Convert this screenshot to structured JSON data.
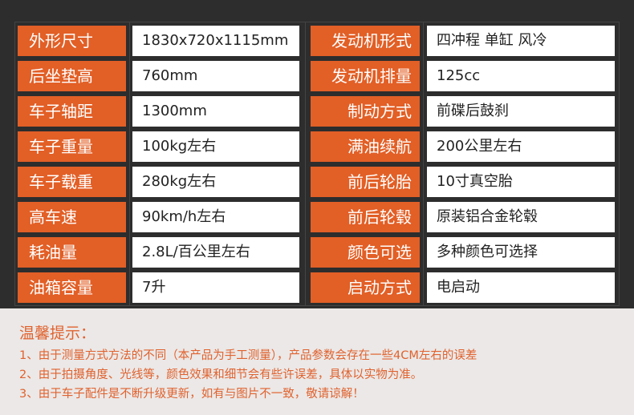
{
  "colors": {
    "label_bg": "#e25f26",
    "page_bg": "#2d2d2d",
    "note_text": "#e0622e"
  },
  "specs": [
    {
      "left_label": "外形尺寸",
      "left_value": "1830x720x1115mm",
      "right_label": "发动机形式",
      "right_value": "四冲程 单缸 风冷"
    },
    {
      "left_label": "后坐垫高",
      "left_value": "760mm",
      "right_label": "发动机排量",
      "right_value": "125cc"
    },
    {
      "left_label": "车子轴距",
      "left_value": "1300mm",
      "right_label": "制动方式",
      "right_value": "前碟后鼓刹"
    },
    {
      "left_label": "车子重量",
      "left_value": "100kg左右",
      "right_label": "满油续航",
      "right_value": "200公里左右"
    },
    {
      "left_label": "车子载重",
      "left_value": "280kg左右",
      "right_label": "前后轮胎",
      "right_value": "10寸真空胎"
    },
    {
      "left_label": "高车速",
      "left_value": "90km/h左右",
      "right_label": "前后轮毂",
      "right_value": "原装铝合金轮毂"
    },
    {
      "left_label": "耗油量",
      "left_value": "2.8L/百公里左右",
      "right_label": "颜色可选",
      "right_value": "多种颜色可选择"
    },
    {
      "left_label": "油箱容量",
      "left_value": "7升",
      "right_label": "启动方式",
      "right_value": "电启动"
    }
  ],
  "notes": {
    "title": "温馨提示：",
    "lines": [
      "1、由于测量方式方法的不同（本产品为手工测量），产品参数会存在一些4CM左右的误差",
      "2、由于拍摄角度、光线等，颜色效果和细节会有些许误差，具体以实物为准。",
      "3、由于车子配件是不断升级更新，如有与图片不一致，敬请谅解！"
    ]
  }
}
